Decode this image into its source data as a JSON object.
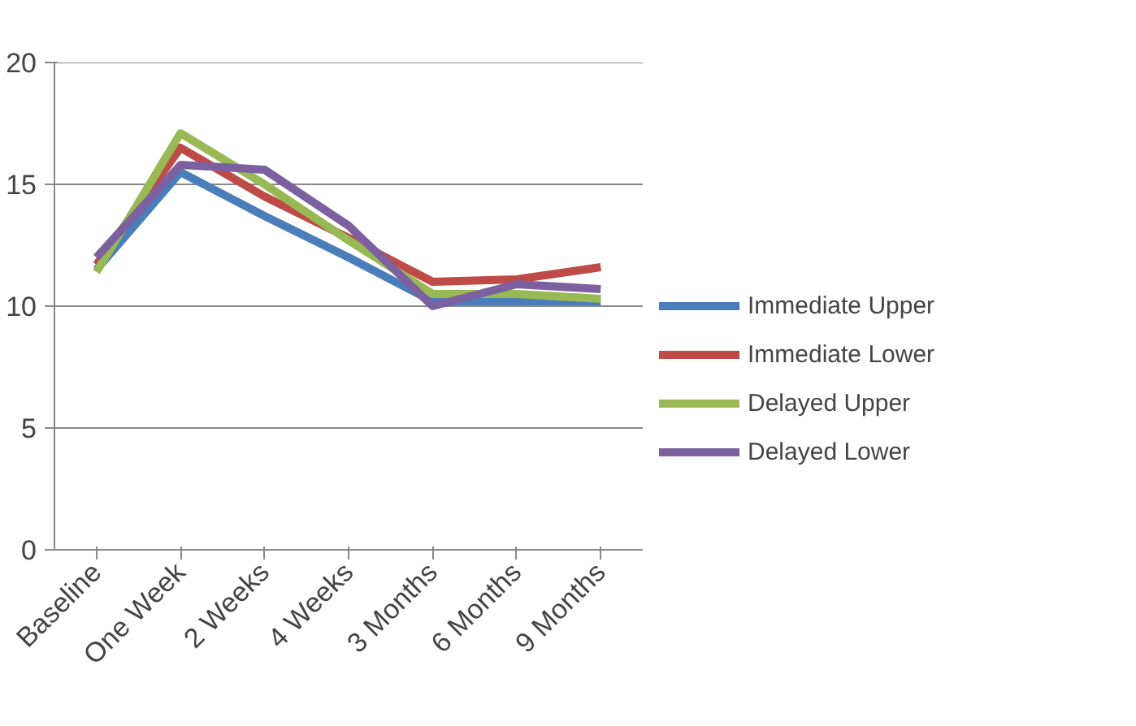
{
  "chart_data": {
    "type": "line",
    "categories": [
      "Baseline",
      "One Week",
      "2 Weeks",
      "4 Weeks",
      "3 Months",
      "6 Months",
      "9 Months"
    ],
    "series": [
      {
        "name": "Immediate Upper",
        "color": "#4a7ebb",
        "values": [
          11.5,
          15.5,
          13.7,
          12.0,
          10.2,
          10.2,
          10.2
        ]
      },
      {
        "name": "Immediate Lower",
        "color": "#be4b48",
        "values": [
          11.7,
          16.5,
          14.5,
          12.8,
          11.0,
          11.1,
          11.6
        ]
      },
      {
        "name": "Delayed Upper",
        "color": "#98b954",
        "values": [
          11.4,
          17.1,
          15.0,
          12.7,
          10.5,
          10.5,
          10.3
        ]
      },
      {
        "name": "Delayed Lower",
        "color": "#7d60a0",
        "values": [
          12.0,
          15.8,
          15.6,
          13.3,
          10.0,
          10.9,
          10.7
        ]
      }
    ],
    "ylim": [
      0,
      20
    ],
    "yticks": [
      0,
      5,
      10,
      15,
      20
    ],
    "grid": "y",
    "legend": "right",
    "marker": "none",
    "line_style": "solid"
  }
}
